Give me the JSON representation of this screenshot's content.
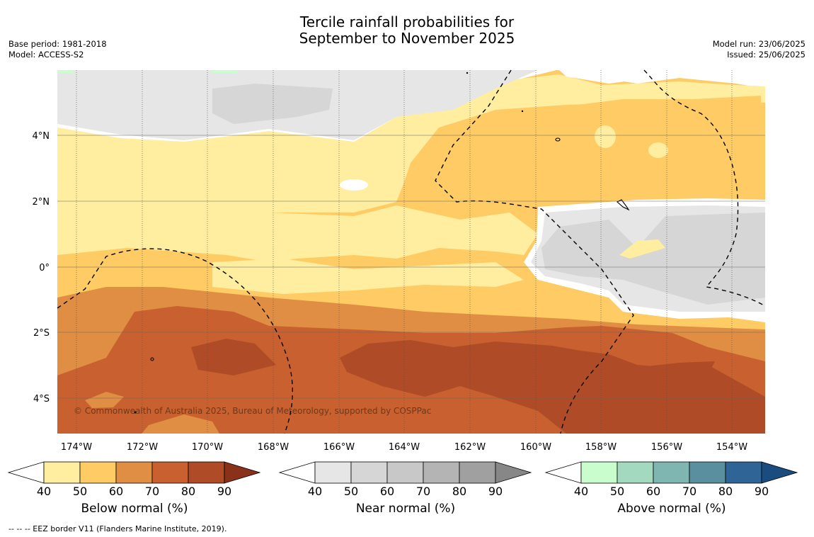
{
  "title": {
    "line1": "Tercile rainfall probabilities for",
    "line2": "September to November 2025"
  },
  "meta_left": {
    "base_period": "Base period: 1981-2018",
    "model": "Model: ACCESS-S2"
  },
  "meta_right": {
    "model_run": "Model run: 23/06/2025",
    "issued": "Issued: 25/06/2025"
  },
  "map": {
    "copyright": "© Commonwealth of Australia 2025, Bureau of Meteorology, supported by COSPPac",
    "lat_labels": [
      "4°N",
      "2°N",
      "0°",
      "2°S",
      "4°S"
    ],
    "lon_labels": [
      "174°W",
      "172°W",
      "170°W",
      "168°W",
      "166°W",
      "164°W",
      "162°W",
      "160°W",
      "158°W",
      "156°W",
      "154°W"
    ]
  },
  "colorbars": [
    {
      "label": "Below normal (%)",
      "ticks": [
        "40",
        "50",
        "60",
        "70",
        "80",
        "90"
      ],
      "colors": [
        "#ffffff",
        "#ffeda0",
        "#fecb64",
        "#df8e43",
        "#c8602f",
        "#af4b26",
        "#8a3219"
      ]
    },
    {
      "label": "Near normal (%)",
      "ticks": [
        "40",
        "50",
        "60",
        "70",
        "80",
        "90"
      ],
      "colors": [
        "#ffffff",
        "#e6e6e6",
        "#d6d6d6",
        "#c8c8c8",
        "#b4b4b4",
        "#a0a0a0",
        "#878787"
      ]
    },
    {
      "label": "Above normal (%)",
      "ticks": [
        "40",
        "50",
        "60",
        "70",
        "80",
        "90"
      ],
      "colors": [
        "#ffffff",
        "#c9fdcd",
        "#a3d9bf",
        "#80b6b2",
        "#5a8f9f",
        "#2e6596",
        "#1a4c80"
      ]
    }
  ],
  "footnote": "--  --  -- EEZ border V11 (Flanders Marine Institute, 2019)."
}
